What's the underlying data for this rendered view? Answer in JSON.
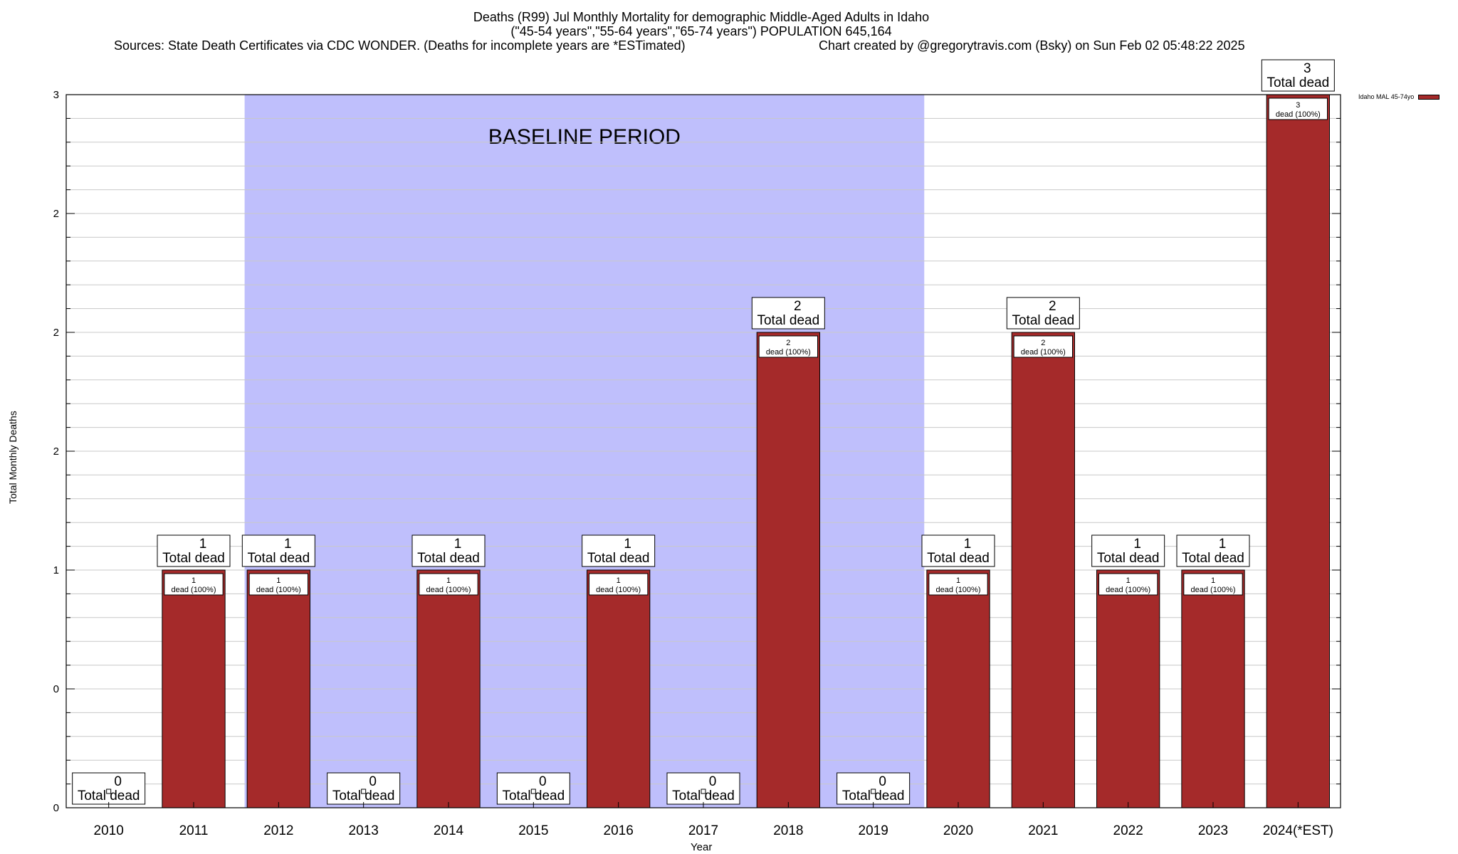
{
  "header": {
    "title_line1": "Deaths (R99) Jul Monthly Mortality for demographic Middle-Aged Adults in Idaho",
    "title_line2": "(\"45-54 years\",\"55-64 years\",\"65-74 years\") POPULATION 645,164",
    "sources": "Sources: State Death Certificates via CDC WONDER. (Deaths for incomplete years are *ESTimated)",
    "credit": "Chart created by @gregorytravis.com (Bsky) on Sun Feb 02 05:48:22 2025"
  },
  "chart_data": {
    "type": "bar",
    "categories": [
      "2010",
      "2011",
      "2012",
      "2013",
      "2014",
      "2015",
      "2016",
      "2017",
      "2018",
      "2019",
      "2020",
      "2021",
      "2022",
      "2023",
      "2024(*EST)"
    ],
    "series": [
      {
        "name": "Idaho MAL 45-74yo",
        "values": [
          0,
          1,
          1,
          0,
          1,
          0,
          1,
          0,
          2,
          0,
          1,
          2,
          1,
          1,
          3
        ],
        "color": "#a52a2a"
      }
    ],
    "total_label": "Total dead",
    "inner_label_suffix": "dead (100%)",
    "ylabel": "Total Monthly Deaths",
    "xlabel": "Year",
    "ylim": [
      0,
      3
    ],
    "ytick_labels": [
      "0",
      "0",
      "1",
      "2",
      "2",
      "2",
      "3"
    ],
    "shaded_region": {
      "label": "BASELINE PERIOD",
      "from": "2012",
      "to": "2019",
      "color": "#bfbffc"
    },
    "grid": true,
    "legend_position": "top-right"
  }
}
